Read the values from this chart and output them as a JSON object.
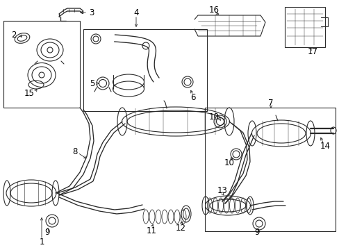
{
  "bg_color": "#ffffff",
  "line_color": "#2a2a2a",
  "fig_width": 4.89,
  "fig_height": 3.6,
  "dpi": 100,
  "label_fontsize": 8.5
}
